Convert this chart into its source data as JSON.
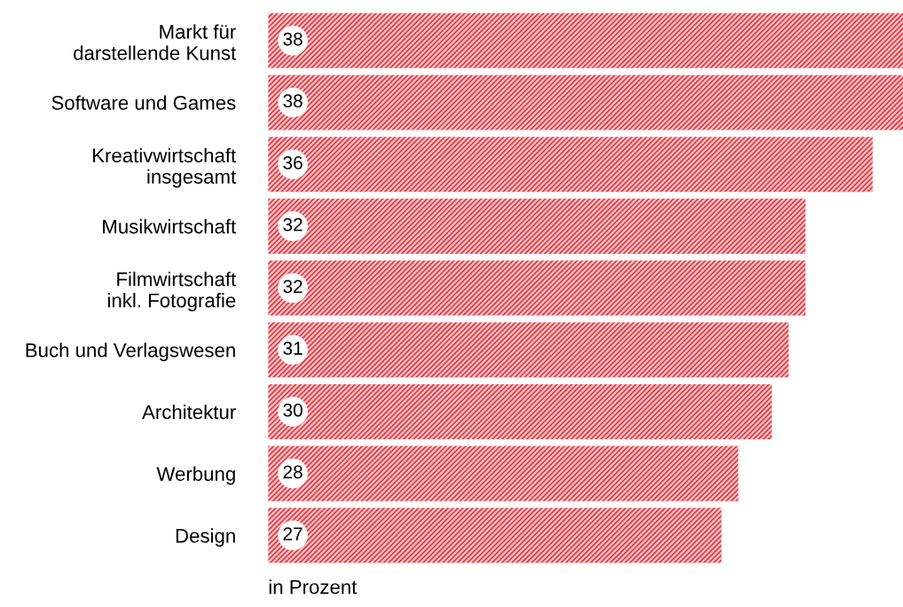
{
  "chart_data": {
    "type": "bar",
    "orientation": "horizontal",
    "categories": [
      "Markt für\ndarstellende Kunst",
      "Software und Games",
      "Kreativwirtschaft\ninsgesamt",
      "Musikwirtschaft",
      "Filmwirtschaft\ninkl. Fotografie",
      "Buch und Verlagswesen",
      "Architektur",
      "Werbung",
      "Design"
    ],
    "values": [
      38,
      38,
      36,
      32,
      32,
      31,
      30,
      28,
      27
    ],
    "color": "#e8333c",
    "data_labels": true,
    "annotations": [
      "in Prozent"
    ]
  }
}
